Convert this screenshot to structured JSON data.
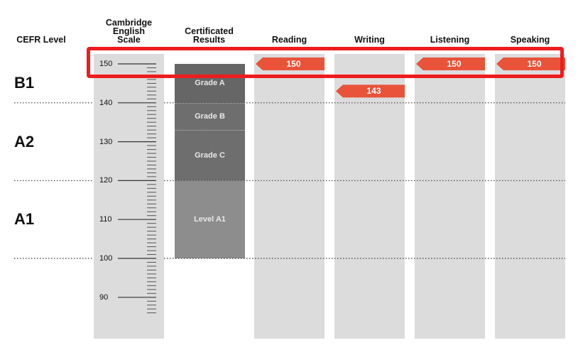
{
  "headers": {
    "cefr": "CEFR Level",
    "scale": [
      "Cambridge",
      "English",
      "Scale"
    ],
    "results": [
      "Certificated",
      "Results"
    ]
  },
  "chart_data": {
    "type": "bar",
    "ylim": [
      85,
      152
    ],
    "ticks": [
      "90",
      "100",
      "110",
      "120",
      "130",
      "140",
      "150"
    ],
    "cefr_levels": [
      {
        "label": "B1",
        "from": 140,
        "to": 160
      },
      {
        "label": "A2",
        "from": 120,
        "to": 140
      },
      {
        "label": "A1",
        "from": 100,
        "to": 120
      }
    ],
    "dotted_lines": [
      140,
      120,
      100
    ],
    "certificated_results": [
      {
        "label": "Grade A",
        "from": 140,
        "to": 150,
        "color": "#666666"
      },
      {
        "label": "Grade B",
        "from": 133,
        "to": 140,
        "color": "#6e6e6e"
      },
      {
        "label": "Grade C",
        "from": 120,
        "to": 133,
        "color": "#6e6e6e"
      },
      {
        "label": "Level A1",
        "from": 100,
        "to": 120,
        "color": "#8d8d8d"
      }
    ],
    "categories": [
      "Reading",
      "Writing",
      "Listening",
      "Speaking"
    ],
    "values": [
      150,
      143,
      150,
      150
    ],
    "value_labels": [
      "150",
      "143",
      "150",
      "150"
    ],
    "marker_color": "#e8533a",
    "highlight_color": "#ee1c1c"
  }
}
